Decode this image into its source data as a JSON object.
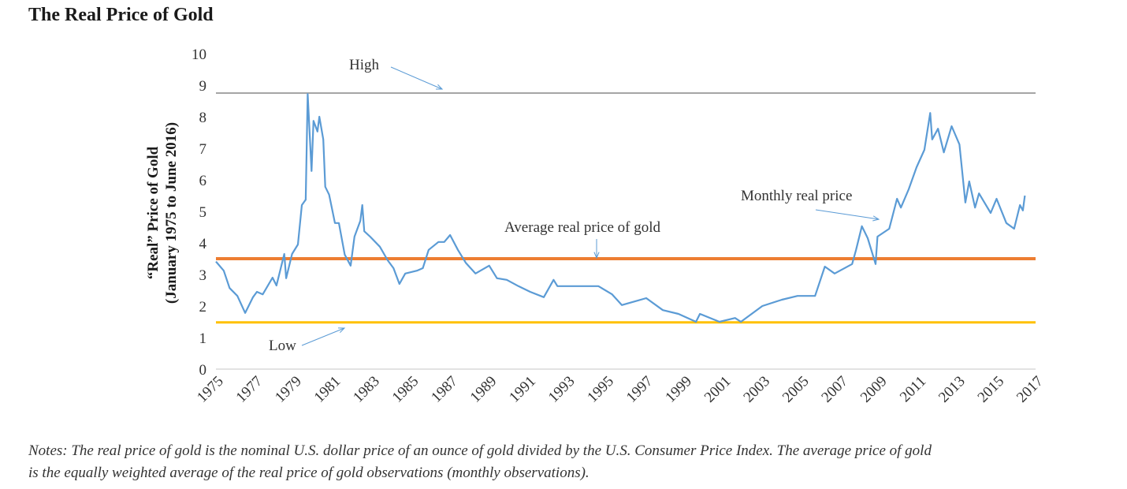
{
  "chart_data": {
    "type": "line",
    "title": "The Real Price of Gold",
    "ylabel_lines": [
      "“Real” Price of Gold",
      "(January 1975 to June 2016)"
    ],
    "xlabel": "",
    "xlim": [
      1975,
      2017
    ],
    "ylim": [
      0,
      10
    ],
    "x_ticks": [
      "1975",
      "1977",
      "1979",
      "1981",
      "1983",
      "1985",
      "1987",
      "1989",
      "1991",
      "1993",
      "1995",
      "1997",
      "1999",
      "2001",
      "2003",
      "2005",
      "2007",
      "2009",
      "2011",
      "2013",
      "2015",
      "2017"
    ],
    "y_ticks": [
      "0",
      "1",
      "2",
      "3",
      "4",
      "5",
      "6",
      "7",
      "8",
      "9",
      "10"
    ],
    "grid": false,
    "colors": {
      "monthly": "#5b9bd5",
      "average": "#ed7d31",
      "low": "#ffc000",
      "high": "#a5a5a5",
      "axis": "#d9d9d9"
    },
    "reference_lines": [
      {
        "key": "high",
        "value": 8.75
      },
      {
        "key": "average",
        "value": 3.5
      },
      {
        "key": "low",
        "value": 1.48
      }
    ],
    "annotations": {
      "high": "High",
      "low": "Low",
      "average": "Average real price of gold",
      "monthly": "Monthly real price"
    },
    "series": [
      {
        "key": "monthly",
        "x": [
          1975.0,
          1975.4,
          1975.7,
          1976.1,
          1976.5,
          1976.9,
          1977.1,
          1977.4,
          1977.9,
          1978.1,
          1978.5,
          1978.6,
          1978.9,
          1979.2,
          1979.4,
          1979.6,
          1979.7,
          1979.9,
          1980.0,
          1980.2,
          1980.3,
          1980.5,
          1980.6,
          1980.8,
          1981.1,
          1981.3,
          1981.6,
          1981.9,
          1982.1,
          1982.4,
          1982.5,
          1982.6,
          1982.9,
          1983.4,
          1983.8,
          1984.1,
          1984.4,
          1984.7,
          1985.3,
          1985.6,
          1985.9,
          1986.4,
          1986.7,
          1987.0,
          1987.4,
          1987.8,
          1988.3,
          1989.0,
          1989.4,
          1989.9,
          1990.5,
          1991.1,
          1991.8,
          1992.3,
          1992.5,
          1993.3,
          1994.6,
          1995.3,
          1995.8,
          1997.05,
          1997.9,
          1998.7,
          1999.6,
          1999.8,
          2000.8,
          2001.6,
          2001.9,
          2003.0,
          2004.0,
          2004.8,
          2005.7,
          2006.2,
          2006.7,
          2007.6,
          2007.8,
          2008.1,
          2008.4,
          2008.8,
          2008.9,
          2009.5,
          2009.9,
          2010.1,
          2010.5,
          2010.9,
          2011.3,
          2011.6,
          2011.7,
          2012.0,
          2012.3,
          2012.7,
          2013.1,
          2013.4,
          2013.6,
          2013.9,
          2014.1,
          2014.7,
          2015.0,
          2015.5,
          2015.9,
          2016.2,
          2016.35,
          2016.45
        ],
        "values": [
          3.41,
          3.12,
          2.57,
          2.32,
          1.78,
          2.28,
          2.45,
          2.37,
          2.9,
          2.65,
          3.65,
          2.88,
          3.65,
          3.95,
          5.2,
          5.37,
          8.72,
          6.28,
          7.87,
          7.53,
          8.0,
          7.28,
          5.78,
          5.53,
          4.63,
          4.63,
          3.63,
          3.28,
          4.2,
          4.7,
          5.2,
          4.37,
          4.2,
          3.88,
          3.45,
          3.2,
          2.7,
          3.03,
          3.12,
          3.2,
          3.78,
          4.03,
          4.03,
          4.25,
          3.78,
          3.37,
          3.03,
          3.28,
          2.88,
          2.83,
          2.63,
          2.45,
          2.28,
          2.83,
          2.63,
          2.63,
          2.63,
          2.37,
          2.03,
          2.25,
          1.87,
          1.75,
          1.5,
          1.75,
          1.5,
          1.62,
          1.5,
          2.0,
          2.2,
          2.32,
          2.32,
          3.25,
          3.03,
          3.33,
          3.78,
          4.53,
          4.15,
          3.33,
          4.2,
          4.45,
          5.4,
          5.12,
          5.7,
          6.4,
          6.95,
          8.12,
          7.28,
          7.62,
          6.87,
          7.7,
          7.12,
          5.28,
          5.95,
          5.12,
          5.57,
          4.95,
          5.4,
          4.63,
          4.45,
          5.2,
          5.03,
          5.5
        ]
      }
    ]
  },
  "notes": [
    "Notes: The real price of gold is the nominal U.S. dollar price of an ounce of gold divided by the U.S. Consumer Price Index. The average price of gold",
    "is the equally weighted average of the real price of gold observations (monthly observations)."
  ]
}
